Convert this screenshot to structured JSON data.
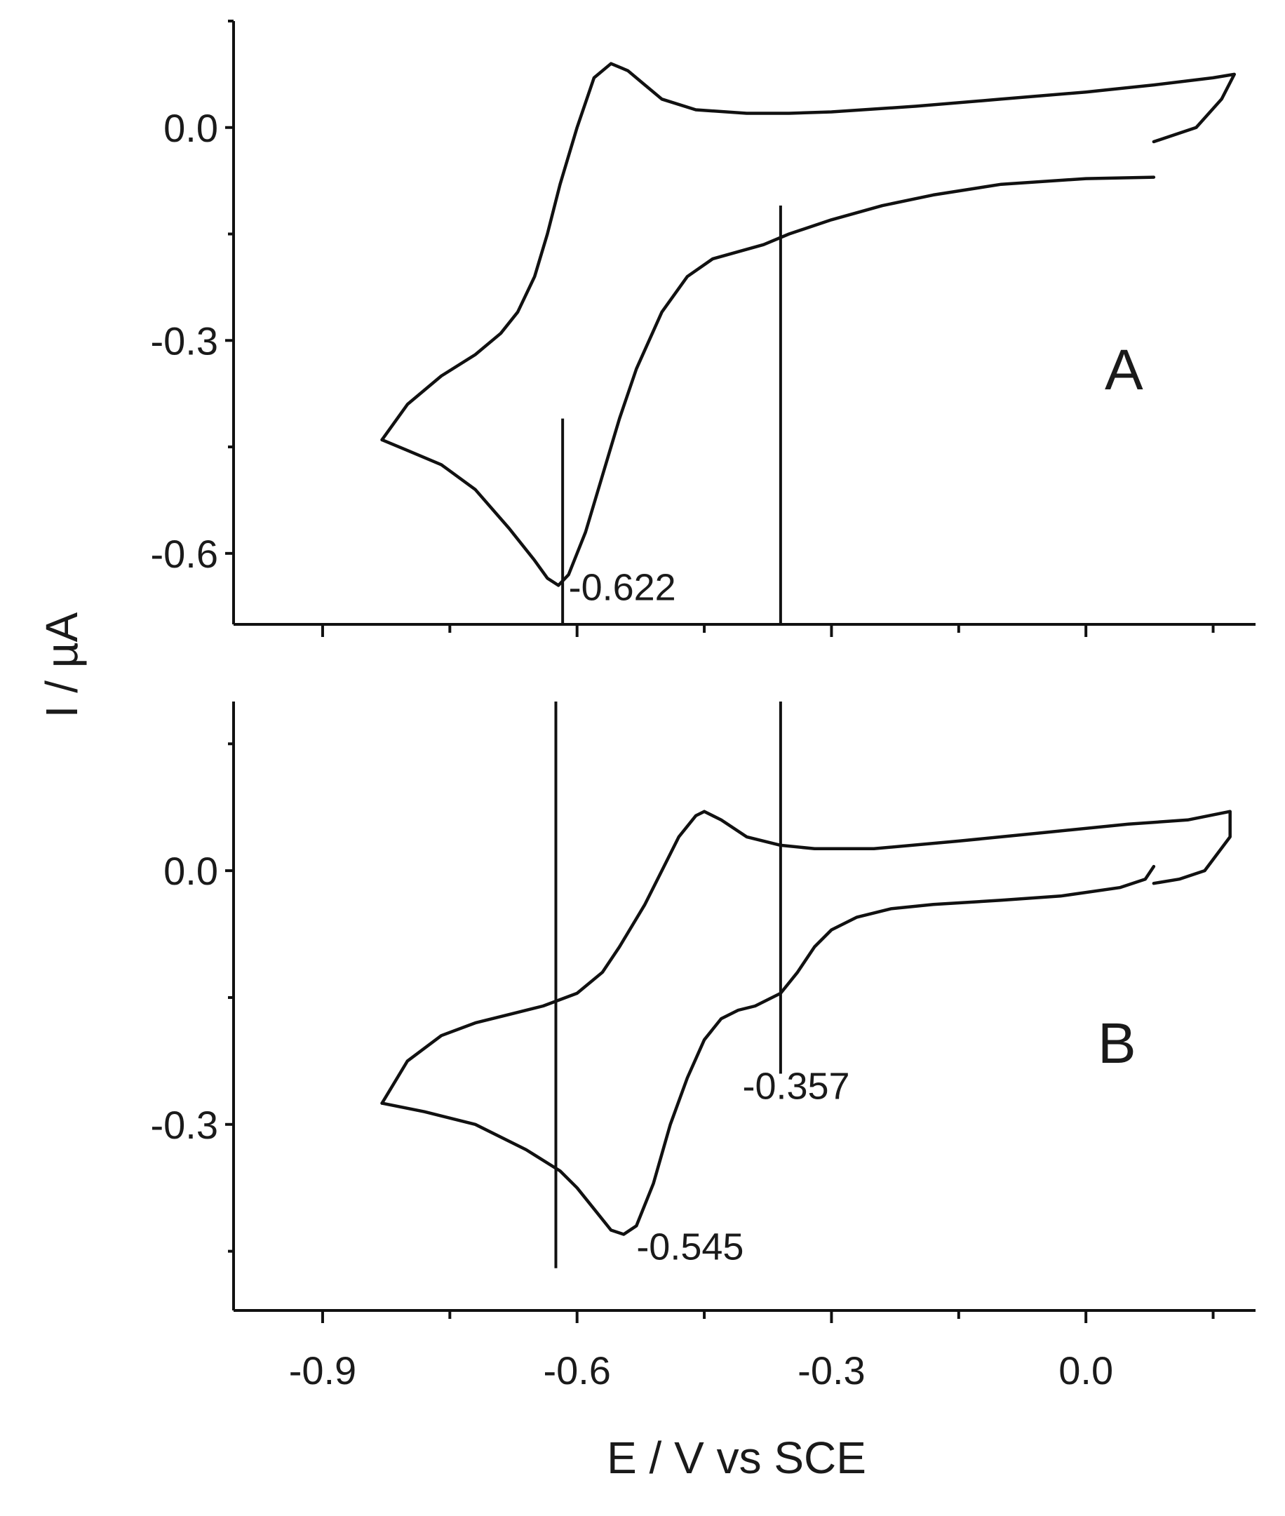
{
  "chart_data": {
    "type": "line",
    "xlabel": "E / V vs SCE",
    "ylabel": "I / µA",
    "x_ticks": [
      -0.9,
      -0.6,
      -0.3,
      0.0
    ],
    "x_tick_labels": [
      "-0.9",
      "-0.6",
      "-0.3",
      "0.0"
    ],
    "xlim": [
      -1.005,
      0.2
    ],
    "panels": [
      {
        "label": "A",
        "ylim": [
          -0.7,
          0.15
        ],
        "y_ticks": [
          0.0,
          -0.3,
          -0.6
        ],
        "y_tick_labels": [
          "0.0",
          "-0.3",
          "-0.6"
        ],
        "guides": [
          {
            "x": -0.617,
            "y_from": -0.41,
            "y_to": -0.7
          },
          {
            "x": -0.36,
            "y_from": -0.11,
            "y_to": -0.7
          }
        ],
        "annotations": [
          {
            "text": "-0.622",
            "x": -0.61,
            "y": -0.648
          }
        ],
        "series": [
          {
            "x": [
              -0.83,
              -0.8,
              -0.76,
              -0.72,
              -0.69,
              -0.67,
              -0.65,
              -0.635,
              -0.62,
              -0.6,
              -0.58,
              -0.56,
              -0.54,
              -0.52,
              -0.5,
              -0.46,
              -0.4,
              -0.35,
              -0.3,
              -0.2,
              -0.1,
              0.0,
              0.08,
              0.15,
              0.175,
              0.16,
              0.13,
              0.08
            ],
            "y": [
              -0.44,
              -0.39,
              -0.35,
              -0.32,
              -0.29,
              -0.26,
              -0.21,
              -0.15,
              -0.08,
              0.0,
              0.07,
              0.09,
              0.08,
              0.06,
              0.04,
              0.025,
              0.02,
              0.02,
              0.022,
              0.03,
              0.04,
              0.05,
              0.06,
              0.07,
              0.075,
              0.04,
              0.0,
              -0.02
            ]
          },
          {
            "x": [
              -0.83,
              -0.8,
              -0.76,
              -0.72,
              -0.68,
              -0.65,
              -0.635,
              -0.622,
              -0.61,
              -0.59,
              -0.57,
              -0.55,
              -0.53,
              -0.5,
              -0.47,
              -0.44,
              -0.41,
              -0.38,
              -0.35,
              -0.3,
              -0.24,
              -0.18,
              -0.1,
              0.0,
              0.08
            ],
            "y": [
              -0.44,
              -0.455,
              -0.475,
              -0.51,
              -0.565,
              -0.61,
              -0.635,
              -0.645,
              -0.63,
              -0.57,
              -0.49,
              -0.41,
              -0.34,
              -0.26,
              -0.21,
              -0.185,
              -0.175,
              -0.165,
              -0.15,
              -0.13,
              -0.11,
              -0.095,
              -0.08,
              -0.072,
              -0.07
            ]
          }
        ]
      },
      {
        "label": "B",
        "ylim": [
          -0.52,
          0.2
        ],
        "y_ticks": [
          0.0,
          -0.3
        ],
        "y_tick_labels": [
          "0.0",
          "-0.3"
        ],
        "guides": [
          {
            "x": -0.625,
            "y_from": -0.47,
            "y_to": 0.2
          },
          {
            "x": -0.36,
            "y_from": -0.24,
            "y_to": 0.2
          }
        ],
        "annotations": [
          {
            "text": "-0.357",
            "x": -0.405,
            "y": -0.255
          },
          {
            "text": "-0.545",
            "x": -0.53,
            "y": -0.445
          }
        ],
        "series": [
          {
            "x": [
              -0.83,
              -0.8,
              -0.76,
              -0.72,
              -0.68,
              -0.64,
              -0.6,
              -0.57,
              -0.55,
              -0.52,
              -0.5,
              -0.48,
              -0.46,
              -0.45,
              -0.43,
              -0.4,
              -0.36,
              -0.32,
              -0.25,
              -0.15,
              -0.05,
              0.05,
              0.12,
              0.17,
              0.17,
              0.14,
              0.11,
              0.08
            ],
            "y": [
              -0.275,
              -0.225,
              -0.195,
              -0.18,
              -0.17,
              -0.16,
              -0.145,
              -0.12,
              -0.09,
              -0.04,
              0.0,
              0.04,
              0.065,
              0.07,
              0.06,
              0.04,
              0.03,
              0.026,
              0.026,
              0.035,
              0.045,
              0.055,
              0.06,
              0.07,
              0.04,
              0.0,
              -0.01,
              -0.015
            ]
          },
          {
            "x": [
              -0.83,
              -0.78,
              -0.72,
              -0.66,
              -0.62,
              -0.6,
              -0.58,
              -0.56,
              -0.545,
              -0.53,
              -0.51,
              -0.49,
              -0.47,
              -0.45,
              -0.43,
              -0.41,
              -0.39,
              -0.36,
              -0.34,
              -0.32,
              -0.3,
              -0.27,
              -0.23,
              -0.18,
              -0.1,
              -0.03,
              0.04,
              0.07,
              0.08
            ],
            "y": [
              -0.275,
              -0.285,
              -0.3,
              -0.33,
              -0.355,
              -0.375,
              -0.4,
              -0.425,
              -0.43,
              -0.42,
              -0.37,
              -0.3,
              -0.245,
              -0.2,
              -0.175,
              -0.165,
              -0.16,
              -0.145,
              -0.12,
              -0.09,
              -0.07,
              -0.055,
              -0.045,
              -0.04,
              -0.035,
              -0.03,
              -0.02,
              -0.01,
              0.005
            ]
          }
        ]
      }
    ]
  }
}
